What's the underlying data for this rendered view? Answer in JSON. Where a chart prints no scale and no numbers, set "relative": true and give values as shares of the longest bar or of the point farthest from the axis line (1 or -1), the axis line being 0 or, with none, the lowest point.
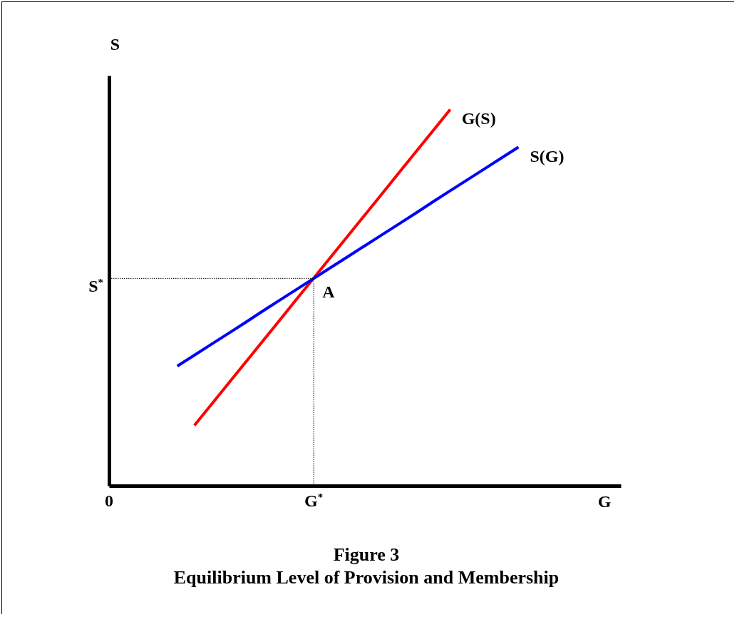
{
  "chart_data": {
    "type": "line",
    "title": "Figure 3",
    "subtitle": "Equilibrium Level of Provision and Membership",
    "xlabel": "G",
    "ylabel": "S",
    "relative": true,
    "categories": [
      "0",
      null,
      null,
      null,
      null,
      null,
      null,
      null,
      null,
      null,
      null,
      null,
      "G$^{*}$",
      null,
      null,
      null,
      null,
      null,
      null,
      null,
      null,
      null,
      null,
      null,
      null,
      null,
      null,
      null,
      null,
      null,
      null
    ],
    "series": [
      {
        "name": "G(S)",
        "color": "#ff0000",
        "values": [
          null,
          null,
          null,
          null,
          null,
          0.16,
          0.216,
          0.272,
          0.328,
          0.384,
          0.44,
          0.496,
          0.552,
          0.608,
          0.664,
          0.72,
          0.776,
          0.832,
          0.888,
          0.944,
          1.0,
          null,
          null,
          null,
          null,
          null,
          null,
          null,
          null,
          null,
          null
        ]
      },
      {
        "name": "S(G)",
        "color": "#0000ff",
        "values": [
          null,
          null,
          null,
          null,
          0.318,
          0.347,
          0.376,
          0.405,
          0.434,
          0.464,
          0.493,
          0.522,
          0.551,
          0.58,
          0.609,
          0.638,
          0.667,
          0.696,
          0.725,
          0.755,
          0.784,
          0.813,
          0.842,
          0.871,
          0.9,
          null,
          null,
          null,
          null,
          null,
          null
        ]
      }
    ],
    "ref_lines": [
      {
        "axis": "y",
        "value": 0.551,
        "label": "S$^{*}$",
        "line_style": "dotted"
      },
      {
        "axis": "x",
        "value": "G$^{*}$",
        "line_style": "dotted"
      }
    ],
    "annotations": [
      {
        "text": "A",
        "x": "G$^{*}$",
        "y": 0.551
      }
    ]
  }
}
